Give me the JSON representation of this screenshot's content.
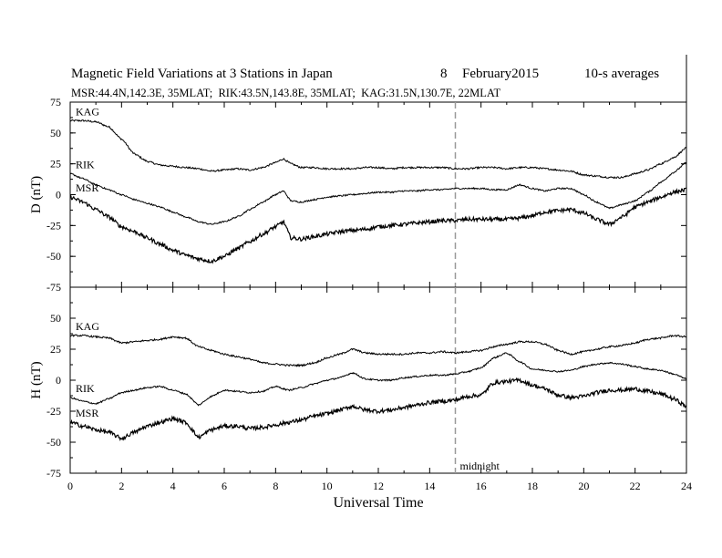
{
  "header": {
    "title": "Magnetic Field Variations at 3 Stations in Japan",
    "date_day": "8",
    "date_month_year": "February2015",
    "averaging": "10-s averages",
    "stations": "MSR:44.4N,142.3E, 35MLAT;  RIK:43.5N,143.8E, 35MLAT;  KAG:31.5N,130.7E, 22MLAT"
  },
  "chart_data": [
    {
      "type": "line",
      "panel": "top",
      "ylabel": "D (nT)",
      "ylim": [
        -75,
        75
      ],
      "yticks": [
        "75",
        "50",
        "25",
        "0",
        "-25",
        "-50",
        "-75"
      ],
      "xlim": [
        0,
        24
      ],
      "series": [
        {
          "name": "KAG",
          "x": [
            0,
            0.5,
            1,
            1.5,
            2,
            2.5,
            3,
            3.5,
            4,
            4.5,
            5,
            5.5,
            6,
            6.5,
            7,
            7.5,
            8,
            8.3,
            8.6,
            9,
            9.5,
            10,
            10.5,
            11,
            11.5,
            12,
            12.5,
            13,
            13.5,
            14,
            14.5,
            15,
            15.5,
            16,
            16.5,
            17,
            17.5,
            18,
            18.5,
            19,
            19.5,
            20,
            20.5,
            21,
            21.5,
            22,
            22.5,
            23,
            23.5,
            24
          ],
          "y": [
            60,
            60,
            59,
            55,
            45,
            33,
            27,
            24,
            23,
            22,
            21,
            19,
            20,
            21,
            20,
            22,
            26,
            29,
            25,
            22,
            22,
            21,
            21,
            21,
            22,
            22,
            21,
            22,
            22,
            22,
            22,
            21,
            21,
            22,
            22,
            21,
            22,
            22,
            21,
            20,
            19,
            16,
            15,
            14,
            14,
            17,
            20,
            25,
            30,
            38
          ]
        },
        {
          "name": "RIK",
          "x": [
            0,
            0.5,
            1,
            1.5,
            2,
            2.5,
            3,
            3.5,
            4,
            4.5,
            5,
            5.5,
            6,
            6.5,
            7,
            7.5,
            8,
            8.3,
            8.6,
            9,
            9.5,
            10,
            10.5,
            11,
            11.5,
            12,
            12.5,
            13,
            13.5,
            14,
            14.5,
            15,
            15.5,
            16,
            16.5,
            17,
            17.5,
            18,
            18.5,
            19,
            19.5,
            20,
            20.5,
            21,
            21.5,
            22,
            22.5,
            23,
            23.5,
            24
          ],
          "y": [
            17,
            13,
            8,
            4,
            0,
            -4,
            -7,
            -10,
            -14,
            -18,
            -22,
            -24,
            -22,
            -18,
            -12,
            -6,
            0,
            3,
            -5,
            -6,
            -4,
            -2,
            -1,
            0,
            1,
            2,
            2,
            3,
            3,
            4,
            4,
            5,
            5,
            5,
            4,
            4,
            8,
            5,
            3,
            5,
            5,
            0,
            -6,
            -11,
            -8,
            -5,
            2,
            10,
            18,
            26
          ]
        },
        {
          "name": "MSR",
          "x": [
            0,
            0.5,
            1,
            1.5,
            2,
            2.5,
            3,
            3.5,
            4,
            4.5,
            5,
            5.5,
            6,
            6.5,
            7,
            7.5,
            8,
            8.3,
            8.6,
            9,
            9.5,
            10,
            10.5,
            11,
            11.5,
            12,
            12.5,
            13,
            13.5,
            14,
            14.5,
            15,
            15.5,
            16,
            16.5,
            17,
            17.5,
            18,
            18.5,
            19,
            19.5,
            20,
            20.5,
            21,
            21.5,
            22,
            22.5,
            23,
            23.5,
            24
          ],
          "y": [
            -2,
            -6,
            -12,
            -18,
            -26,
            -30,
            -35,
            -40,
            -45,
            -49,
            -52,
            -54,
            -50,
            -44,
            -38,
            -32,
            -26,
            -22,
            -35,
            -36,
            -34,
            -32,
            -30,
            -29,
            -28,
            -26,
            -25,
            -24,
            -23,
            -22,
            -21,
            -21,
            -20,
            -20,
            -20,
            -20,
            -19,
            -17,
            -14,
            -13,
            -12,
            -15,
            -20,
            -24,
            -18,
            -10,
            -6,
            -2,
            2,
            4
          ]
        }
      ]
    },
    {
      "type": "line",
      "panel": "bottom",
      "ylabel": "H (nT)",
      "ylim": [
        -75,
        75
      ],
      "yticks": [
        "",
        "50",
        "25",
        "0",
        "-25",
        "-50",
        "-75"
      ],
      "xlim": [
        0,
        24
      ],
      "xlabel": "Universal Time",
      "xticks": [
        "0",
        "2",
        "4",
        "6",
        "8",
        "10",
        "12",
        "14",
        "16",
        "18",
        "20",
        "22",
        "24"
      ],
      "annotation": {
        "text": "midnight",
        "x": 15
      },
      "series": [
        {
          "name": "KAG",
          "x": [
            0,
            0.5,
            1,
            1.5,
            2,
            2.5,
            3,
            3.5,
            4,
            4.5,
            5,
            5.5,
            6,
            6.5,
            7,
            7.5,
            8,
            8.5,
            9,
            9.5,
            10,
            10.5,
            11,
            11.5,
            12,
            12.5,
            13,
            13.5,
            14,
            14.5,
            15,
            15.5,
            16,
            16.5,
            17,
            17.5,
            18,
            18.5,
            19,
            19.5,
            20,
            20.5,
            21,
            21.5,
            22,
            22.5,
            23,
            23.5,
            24
          ],
          "y": [
            36,
            36,
            35,
            34,
            30,
            31,
            32,
            33,
            35,
            34,
            27,
            24,
            21,
            19,
            17,
            14,
            13,
            12,
            12,
            14,
            18,
            21,
            25,
            22,
            21,
            21,
            21,
            22,
            22,
            23,
            22,
            23,
            24,
            27,
            29,
            31,
            31,
            29,
            24,
            21,
            23,
            25,
            27,
            28,
            30,
            33,
            34,
            36,
            35
          ]
        },
        {
          "name": "RIK",
          "x": [
            0,
            0.5,
            1,
            1.5,
            2,
            2.5,
            3,
            3.5,
            4,
            4.5,
            5,
            5.5,
            6,
            6.5,
            7,
            7.5,
            8,
            8.5,
            9,
            9.5,
            10,
            10.5,
            11,
            11.5,
            12,
            12.5,
            13,
            13.5,
            14,
            14.5,
            15,
            15.5,
            16,
            16.5,
            17,
            17.5,
            18,
            18.5,
            19,
            19.5,
            20,
            20.5,
            21,
            21.5,
            22,
            22.5,
            23,
            23.5,
            24
          ],
          "y": [
            -14,
            -17,
            -19,
            -15,
            -10,
            -8,
            -6,
            -5,
            -8,
            -11,
            -20,
            -13,
            -8,
            -9,
            -10,
            -9,
            -5,
            -8,
            -6,
            -3,
            0,
            2,
            6,
            1,
            0,
            0,
            2,
            3,
            4,
            4,
            5,
            7,
            10,
            18,
            22,
            15,
            9,
            8,
            7,
            8,
            11,
            13,
            14,
            13,
            11,
            9,
            8,
            5,
            1
          ]
        },
        {
          "name": "MSR",
          "x": [
            0,
            0.5,
            1,
            1.5,
            2,
            2.5,
            3,
            3.5,
            4,
            4.5,
            5,
            5.5,
            6,
            6.5,
            7,
            7.5,
            8,
            8.5,
            9,
            9.5,
            10,
            10.5,
            11,
            11.5,
            12,
            12.5,
            13,
            13.5,
            14,
            14.5,
            15,
            15.5,
            16,
            16.5,
            17,
            17.5,
            18,
            18.5,
            19,
            19.5,
            20,
            20.5,
            21,
            21.5,
            22,
            22.5,
            23,
            23.5,
            24
          ],
          "y": [
            -34,
            -37,
            -40,
            -42,
            -47,
            -42,
            -37,
            -34,
            -31,
            -34,
            -46,
            -40,
            -37,
            -37,
            -39,
            -38,
            -36,
            -34,
            -32,
            -29,
            -27,
            -24,
            -21,
            -24,
            -25,
            -24,
            -22,
            -20,
            -18,
            -17,
            -16,
            -13,
            -12,
            -2,
            -1,
            0,
            -4,
            -7,
            -12,
            -14,
            -13,
            -10,
            -8,
            -8,
            -7,
            -9,
            -11,
            -15,
            -21
          ]
        }
      ]
    }
  ]
}
